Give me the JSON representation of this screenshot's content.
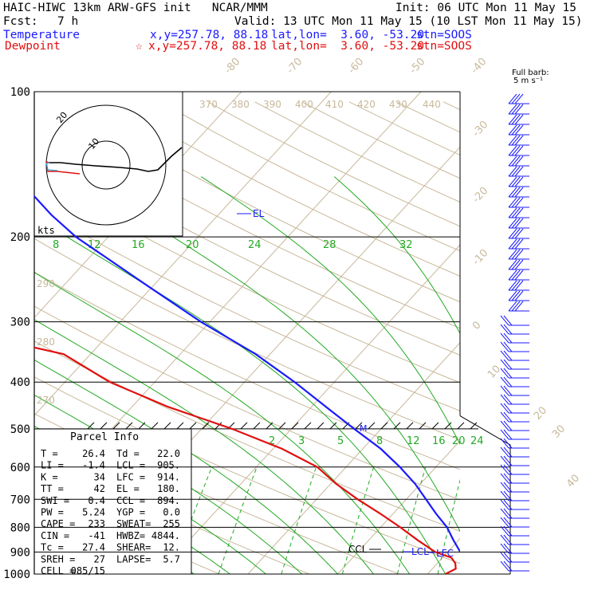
{
  "header": {
    "title": "HAIC-HIWC 13km ARW-GFS init   NCAR/MMM",
    "init": "Init: 06 UTC Mon 11 May 15",
    "fcst_label": "Fcst:",
    "fcst_value": "7 h",
    "valid": "Valid: 13 UTC Mon 11 May 15 (10 LST Mon 11 May 15)",
    "temp_line": {
      "name": "Temperature",
      "xy": "x,y=257.78, 88.18",
      "latlon": "lat,lon=  3.60, -53.20",
      "stn": "stn=SOOS",
      "color": "#1a1aff"
    },
    "dew_line": {
      "name": "Dewpoint",
      "marker": "☆",
      "xy": "x,y=257.78, 88.18",
      "latlon": "lat,lon=  3.60, -53.20",
      "stn": "stn=SOOS",
      "color": "#e01010"
    }
  },
  "barb_legend": {
    "line1": "Full barb:",
    "line2": "5 m s⁻¹"
  },
  "parcel_info": {
    "title": "Parcel Info",
    "rows": [
      [
        "T  =",
        "26.4",
        "Td =",
        "22.0"
      ],
      [
        "LI =",
        "-1.4",
        "LCL =",
        "905."
      ],
      [
        "K  =",
        "34",
        "LFC =",
        "914."
      ],
      [
        "TT =",
        "42",
        "EL  =",
        "180."
      ],
      [
        "SWI =",
        "0.4",
        "CCL =",
        "894."
      ],
      [
        "PW =",
        "5.24",
        "YGP =",
        "0.0"
      ],
      [
        "CAPE =",
        "233",
        "SWEAT=",
        "255"
      ],
      [
        "CIN =",
        "-41",
        "HWBZ=",
        "4844."
      ],
      [
        "Tc =",
        "27.4",
        "SHEAR=",
        "12."
      ],
      [
        "SREH =",
        "27",
        "LAPSE=",
        "5.7"
      ],
      [
        "CELL =",
        "085/15",
        "",
        ""
      ]
    ]
  },
  "hodograph": {
    "units": "kts",
    "rings": [
      10,
      20
    ],
    "ring_labels": [
      "10",
      "20"
    ]
  },
  "chart_data": {
    "type": "line",
    "subtype": "skew-T log-p",
    "pressure_ticks": [
      100,
      200,
      300,
      400,
      500,
      600,
      700,
      800,
      900,
      1000
    ],
    "ylim": [
      1000,
      100
    ],
    "isotherm_labels": [
      -80,
      -70,
      -60,
      -50,
      -40,
      -30,
      -20,
      -10,
      0,
      10,
      20,
      30,
      40
    ],
    "mixing_ratio_labels_top": [
      "8",
      "12",
      "16",
      "20",
      "24",
      "28",
      "32"
    ],
    "mixing_ratio_labels_mid": [
      "2",
      "3",
      "5",
      "8",
      "12",
      "16",
      "20",
      "24"
    ],
    "theta_e_labels": [
      "370",
      "380",
      "390",
      "400",
      "410",
      "420",
      "430",
      "440"
    ],
    "theta_labels": [
      "290",
      "280",
      "270"
    ],
    "annotations": {
      "EL": "EL",
      "CCL": "CCL",
      "LCL": "LCL",
      "LFC": "LFC",
      "M": "M"
    },
    "series": [
      {
        "name": "Temperature",
        "color": "#1a1aff",
        "points": [
          [
            1000,
            28.2
          ],
          [
            975,
            24.8
          ],
          [
            950,
            23.0
          ],
          [
            925,
            22.4
          ],
          [
            900,
            21.4
          ],
          [
            850,
            19.4
          ],
          [
            800,
            17.4
          ],
          [
            750,
            14.8
          ],
          [
            700,
            12.2
          ],
          [
            650,
            9.4
          ],
          [
            600,
            6.0
          ],
          [
            550,
            2.0
          ],
          [
            500,
            -3.0
          ],
          [
            450,
            -8.4
          ],
          [
            400,
            -14.4
          ],
          [
            350,
            -21.6
          ],
          [
            300,
            -31.0
          ],
          [
            250,
            -41.2
          ],
          [
            200,
            -53.6
          ],
          [
            180,
            -58.6
          ],
          [
            150,
            -66.4
          ],
          [
            125,
            -72.0
          ],
          [
            110,
            -74.6
          ],
          [
            100,
            -76.8
          ]
        ]
      },
      {
        "name": "Dewpoint",
        "color": "#e01010",
        "points": [
          [
            1000,
            22.0
          ],
          [
            975,
            22.6
          ],
          [
            950,
            22.0
          ],
          [
            925,
            21.0
          ],
          [
            900,
            18.6
          ],
          [
            850,
            15.4
          ],
          [
            800,
            12.2
          ],
          [
            750,
            8.6
          ],
          [
            700,
            4.6
          ],
          [
            650,
            0.6
          ],
          [
            600,
            -3.2
          ],
          [
            550,
            -9.0
          ],
          [
            500,
            -16.6
          ],
          [
            450,
            -26.0
          ],
          [
            400,
            -35.0
          ],
          [
            350,
            -43.0
          ],
          [
            320,
            -54.2
          ],
          [
            280,
            -58.0
          ],
          [
            255,
            -60.6
          ],
          [
            240,
            -59.6
          ],
          [
            210,
            -65.2
          ],
          [
            180,
            -73.0
          ],
          [
            160,
            -82.6
          ],
          [
            140,
            -86.0
          ],
          [
            125,
            -86.0
          ],
          [
            110,
            -83.0
          ],
          [
            100,
            -80.0
          ]
        ]
      }
    ]
  }
}
